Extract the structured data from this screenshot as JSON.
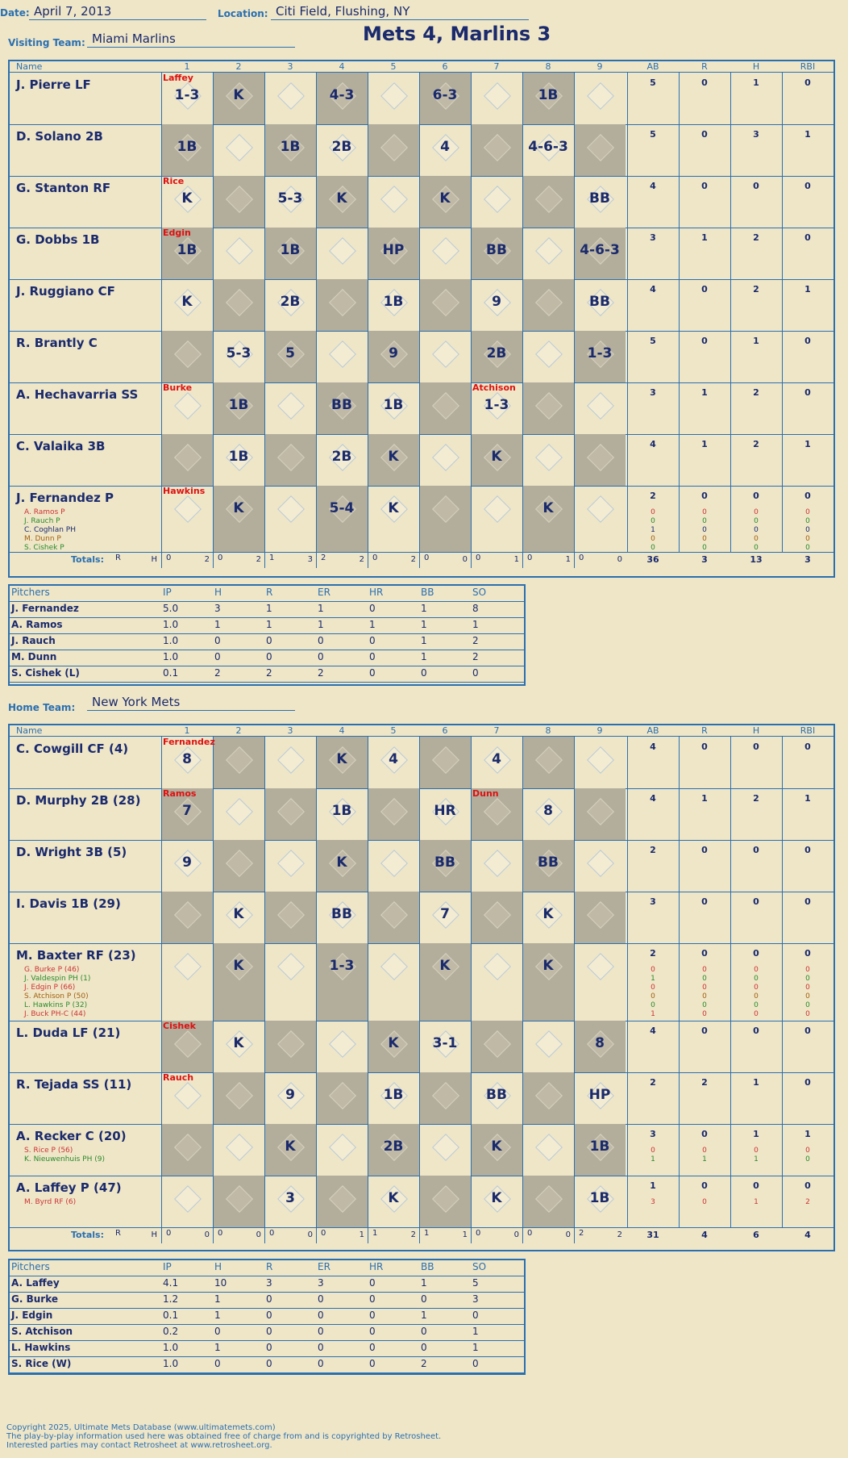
{
  "header": {
    "date_label": "Date:",
    "date": "April 7, 2013",
    "location_label": "Location:",
    "location": "Citi Field, Flushing, NY",
    "visiting_label": "Visiting Team:",
    "visiting_team": "Miami Marlins",
    "title": "Mets 4, Marlins 3",
    "home_label": "Home Team:",
    "home_team": "New York Mets"
  },
  "columns": {
    "name": "Name",
    "innings": [
      "1",
      "2",
      "3",
      "4",
      "5",
      "6",
      "7",
      "8",
      "9"
    ],
    "stats": [
      "AB",
      "R",
      "H",
      "RBI"
    ]
  },
  "watermark": "Ultimate Mets Database",
  "visitors": {
    "rows": [
      {
        "name": "J. Pierre LF",
        "plays": [
          "1-3",
          "K",
          "",
          "4-3",
          "",
          "6-3",
          "",
          "1B",
          ""
        ],
        "pitcher_note": "Laffey",
        "ab": "5",
        "r": "0",
        "h": "1",
        "rbi": "0",
        "subs": []
      },
      {
        "name": "D. Solano 2B",
        "plays": [
          "1B",
          "",
          "1B",
          "2B",
          "",
          "4",
          "",
          "4-6-3",
          ""
        ],
        "ab": "5",
        "r": "0",
        "h": "3",
        "rbi": "1",
        "subs": []
      },
      {
        "name": "G. Stanton RF",
        "plays": [
          "K",
          "",
          "5-3",
          "K",
          "",
          "K",
          "",
          "",
          "BB"
        ],
        "pitcher_note": "Rice",
        "ab": "4",
        "r": "0",
        "h": "0",
        "rbi": "0",
        "subs": []
      },
      {
        "name": "G. Dobbs 1B",
        "plays": [
          "1B",
          "",
          "1B",
          "",
          "HP",
          "",
          "BB",
          "",
          "4-6-3"
        ],
        "pitcher_note": "Edgin",
        "ab": "3",
        "r": "1",
        "h": "2",
        "rbi": "0",
        "subs": []
      },
      {
        "name": "J. Ruggiano CF",
        "plays": [
          "K",
          "",
          "2B",
          "",
          "1B",
          "",
          "9",
          "",
          "BB"
        ],
        "ab": "4",
        "r": "0",
        "h": "2",
        "rbi": "1",
        "subs": []
      },
      {
        "name": "R. Brantly C",
        "plays": [
          "",
          "5-3",
          "5",
          "",
          "9",
          "",
          "2B",
          "",
          "1-3"
        ],
        "ab": "5",
        "r": "0",
        "h": "1",
        "rbi": "0",
        "subs": []
      },
      {
        "name": "A. Hechavarria SS",
        "plays": [
          "",
          "1B",
          "",
          "BB",
          "1B",
          "",
          "1-3",
          "",
          ""
        ],
        "pitcher_note": "Burke",
        "pitcher_note2": "Atchison",
        "ab": "3",
        "r": "1",
        "h": "2",
        "rbi": "0",
        "subs": []
      },
      {
        "name": "C. Valaika 3B",
        "plays": [
          "",
          "1B",
          "",
          "2B",
          "K",
          "",
          "K",
          "",
          ""
        ],
        "ab": "4",
        "r": "1",
        "h": "2",
        "rbi": "1",
        "subs": []
      },
      {
        "name": "J. Fernandez P",
        "plays": [
          "",
          "K",
          "",
          "5-4",
          "K",
          "",
          "",
          "K",
          ""
        ],
        "pitcher_note": "Hawkins",
        "ab": "2",
        "r": "0",
        "h": "0",
        "rbi": "0",
        "subs": [
          {
            "name": "A. Ramos P",
            "ab": "0",
            "r": "0",
            "h": "0",
            "rbi": "0",
            "color": "#c33"
          },
          {
            "name": "J. Rauch P",
            "ab": "0",
            "r": "0",
            "h": "0",
            "rbi": "0",
            "color": "#2a8a2a"
          },
          {
            "name": "C. Coghlan PH",
            "ab": "1",
            "r": "0",
            "h": "0",
            "rbi": "0",
            "color": "#1a2a6c"
          },
          {
            "name": "M. Dunn P",
            "ab": "0",
            "r": "0",
            "h": "0",
            "rbi": "0",
            "color": "#a06010"
          },
          {
            "name": "S. Cishek P",
            "ab": "0",
            "r": "0",
            "h": "0",
            "rbi": "0",
            "color": "#2a8a2a"
          }
        ]
      }
    ],
    "totals": {
      "label": "Totals:",
      "r_label": "R",
      "h_label": "H",
      "innings": [
        [
          "0",
          "2"
        ],
        [
          "0",
          "2"
        ],
        [
          "1",
          "3"
        ],
        [
          "2",
          "2"
        ],
        [
          "0",
          "2"
        ],
        [
          "0",
          "0"
        ],
        [
          "0",
          "1"
        ],
        [
          "0",
          "1"
        ],
        [
          "0",
          "0"
        ]
      ],
      "ab": "36",
      "r": "3",
      "h": "13",
      "rbi": "3"
    },
    "pitchers": {
      "headers": [
        "Pitchers",
        "IP",
        "H",
        "R",
        "ER",
        "HR",
        "BB",
        "SO"
      ],
      "rows": [
        [
          "J. Fernandez",
          "5.0",
          "3",
          "1",
          "1",
          "0",
          "1",
          "8"
        ],
        [
          "A. Ramos",
          "1.0",
          "1",
          "1",
          "1",
          "1",
          "1",
          "1"
        ],
        [
          "J. Rauch",
          "1.0",
          "0",
          "0",
          "0",
          "0",
          "1",
          "2"
        ],
        [
          "M. Dunn",
          "1.0",
          "0",
          "0",
          "0",
          "0",
          "1",
          "2"
        ],
        [
          "S. Cishek (L)",
          "0.1",
          "2",
          "2",
          "2",
          "0",
          "0",
          "0"
        ]
      ]
    }
  },
  "home": {
    "rows": [
      {
        "name": "C. Cowgill CF (4)",
        "plays": [
          "8",
          "",
          "",
          "K",
          "4",
          "",
          "4",
          "",
          ""
        ],
        "pitcher_note": "Fernandez",
        "ab": "4",
        "r": "0",
        "h": "0",
        "rbi": "0",
        "subs": []
      },
      {
        "name": "D. Murphy 2B (28)",
        "plays": [
          "7",
          "",
          "",
          "1B",
          "",
          "HR",
          "",
          "8",
          ""
        ],
        "pitcher_note": "Ramos",
        "pitcher_note2": "Dunn",
        "ab": "4",
        "r": "1",
        "h": "2",
        "rbi": "1",
        "subs": []
      },
      {
        "name": "D. Wright 3B (5)",
        "plays": [
          "9",
          "",
          "",
          "K",
          "",
          "BB",
          "",
          "BB",
          ""
        ],
        "ab": "2",
        "r": "0",
        "h": "0",
        "rbi": "0",
        "subs": []
      },
      {
        "name": "I. Davis 1B (29)",
        "plays": [
          "",
          "K",
          "",
          "BB",
          "",
          "7",
          "",
          "K",
          ""
        ],
        "ab": "3",
        "r": "0",
        "h": "0",
        "rbi": "0",
        "subs": []
      },
      {
        "name": "M. Baxter RF (23)",
        "plays": [
          "",
          "K",
          "",
          "1-3",
          "",
          "K",
          "",
          "K",
          ""
        ],
        "ab": "2",
        "r": "0",
        "h": "0",
        "rbi": "0",
        "subs": [
          {
            "name": "G. Burke P (46)",
            "ab": "0",
            "r": "0",
            "h": "0",
            "rbi": "0",
            "color": "#c33"
          },
          {
            "name": "J. Valdespin PH (1)",
            "ab": "1",
            "r": "0",
            "h": "0",
            "rbi": "0",
            "color": "#2a8a2a"
          },
          {
            "name": "J. Edgin P (66)",
            "ab": "0",
            "r": "0",
            "h": "0",
            "rbi": "0",
            "color": "#c33"
          },
          {
            "name": "S. Atchison P (50)",
            "ab": "0",
            "r": "0",
            "h": "0",
            "rbi": "0",
            "color": "#a06010"
          },
          {
            "name": "L. Hawkins P (32)",
            "ab": "0",
            "r": "0",
            "h": "0",
            "rbi": "0",
            "color": "#2a8a2a"
          },
          {
            "name": "J. Buck PH-C (44)",
            "ab": "1",
            "r": "0",
            "h": "0",
            "rbi": "0",
            "color": "#c33"
          }
        ]
      },
      {
        "name": "L. Duda LF (21)",
        "plays": [
          "",
          "K",
          "",
          "",
          "K",
          "3-1",
          "",
          "",
          "8"
        ],
        "pitcher_note": "Cishek",
        "ab": "4",
        "r": "0",
        "h": "0",
        "rbi": "0",
        "subs": []
      },
      {
        "name": "R. Tejada SS (11)",
        "plays": [
          "",
          "",
          "9",
          "",
          "1B",
          "",
          "BB",
          "",
          "HP"
        ],
        "pitcher_note": "Rauch",
        "ab": "2",
        "r": "2",
        "h": "1",
        "rbi": "0",
        "subs": []
      },
      {
        "name": "A. Recker C (20)",
        "plays": [
          "",
          "",
          "K",
          "",
          "2B",
          "",
          "K",
          "",
          "1B"
        ],
        "ab": "3",
        "r": "0",
        "h": "1",
        "rbi": "1",
        "subs": [
          {
            "name": "S. Rice P (56)",
            "ab": "0",
            "r": "0",
            "h": "0",
            "rbi": "0",
            "color": "#c33"
          },
          {
            "name": "K. Nieuwenhuis PH (9)",
            "ab": "1",
            "r": "1",
            "h": "1",
            "rbi": "0",
            "color": "#2a8a2a"
          }
        ]
      },
      {
        "name": "A. Laffey P (47)",
        "plays": [
          "",
          "",
          "3",
          "",
          "K",
          "",
          "K",
          "",
          "1B"
        ],
        "ab": "1",
        "r": "0",
        "h": "0",
        "rbi": "0",
        "subs": [
          {
            "name": "M. Byrd RF (6)",
            "ab": "3",
            "r": "0",
            "h": "1",
            "rbi": "2",
            "color": "#c33"
          }
        ]
      }
    ],
    "totals": {
      "label": "Totals:",
      "r_label": "R",
      "h_label": "H",
      "innings": [
        [
          "0",
          "0"
        ],
        [
          "0",
          "0"
        ],
        [
          "0",
          "0"
        ],
        [
          "0",
          "1"
        ],
        [
          "1",
          "2"
        ],
        [
          "1",
          "1"
        ],
        [
          "0",
          "0"
        ],
        [
          "0",
          "0"
        ],
        [
          "2",
          "2"
        ]
      ],
      "ab": "31",
      "r": "4",
      "h": "6",
      "rbi": "4"
    },
    "pitchers": {
      "headers": [
        "Pitchers",
        "IP",
        "H",
        "R",
        "ER",
        "HR",
        "BB",
        "SO"
      ],
      "rows": [
        [
          "A. Laffey",
          "4.1",
          "10",
          "3",
          "3",
          "0",
          "1",
          "5"
        ],
        [
          "G. Burke",
          "1.2",
          "1",
          "0",
          "0",
          "0",
          "0",
          "3"
        ],
        [
          "J. Edgin",
          "0.1",
          "1",
          "0",
          "0",
          "0",
          "1",
          "0"
        ],
        [
          "S. Atchison",
          "0.2",
          "0",
          "0",
          "0",
          "0",
          "0",
          "1"
        ],
        [
          "L. Hawkins",
          "1.0",
          "1",
          "0",
          "0",
          "0",
          "0",
          "1"
        ],
        [
          "S. Rice (W)",
          "1.0",
          "0",
          "0",
          "0",
          "0",
          "2",
          "0"
        ]
      ]
    }
  },
  "footer": {
    "copyright": "Copyright 2025, Ultimate Mets Database (www.ultimatemets.com)",
    "line2": "The play-by-play information used here was obtained free of charge from and is copyrighted by Retrosheet.",
    "line3": "Interested parties may contact Retrosheet at www.retrosheet.org."
  }
}
